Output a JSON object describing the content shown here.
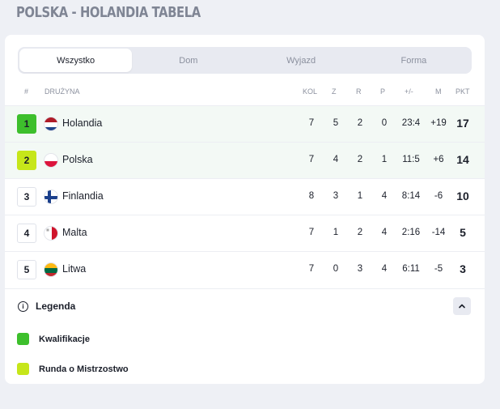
{
  "page_title": "POLSKA - HOLANDIA TABELA",
  "tabs": [
    {
      "label": "Wszystko",
      "active": true
    },
    {
      "label": "Dom",
      "active": false
    },
    {
      "label": "Wyjazd",
      "active": false
    },
    {
      "label": "Forma",
      "active": false
    }
  ],
  "columns": {
    "rank": "#",
    "team": "DRUŻYNA",
    "played": "KOL",
    "won": "Z",
    "drawn": "R",
    "lost": "P",
    "goals": "+/-",
    "diff": "M",
    "points": "PKT"
  },
  "rows": [
    {
      "rank": "1",
      "team": "Holandia",
      "flag": "netherlands-flag-icon",
      "played": "7",
      "won": "5",
      "drawn": "2",
      "lost": "0",
      "goals": "23:4",
      "diff": "+19",
      "points": "17",
      "status_color": "#3dbf2c"
    },
    {
      "rank": "2",
      "team": "Polska",
      "flag": "poland-flag-icon",
      "played": "7",
      "won": "4",
      "drawn": "2",
      "lost": "1",
      "goals": "11:5",
      "diff": "+6",
      "points": "14",
      "status_color": "#c6e61a"
    },
    {
      "rank": "3",
      "team": "Finlandia",
      "flag": "finland-flag-icon",
      "played": "8",
      "won": "3",
      "drawn": "1",
      "lost": "4",
      "goals": "8:14",
      "diff": "-6",
      "points": "10",
      "status_color": ""
    },
    {
      "rank": "4",
      "team": "Malta",
      "flag": "malta-flag-icon",
      "played": "7",
      "won": "1",
      "drawn": "2",
      "lost": "4",
      "goals": "2:16",
      "diff": "-14",
      "points": "5",
      "status_color": ""
    },
    {
      "rank": "5",
      "team": "Litwa",
      "flag": "lithuania-flag-icon",
      "played": "7",
      "won": "0",
      "drawn": "3",
      "lost": "4",
      "goals": "6:11",
      "diff": "-5",
      "points": "3",
      "status_color": ""
    }
  ],
  "legend": {
    "title": "Legenda",
    "items": [
      {
        "label": "Kwalifikacje",
        "color": "#3dbf2c"
      },
      {
        "label": "Runda o Mistrzostwo",
        "color": "#c6e61a"
      }
    ]
  }
}
